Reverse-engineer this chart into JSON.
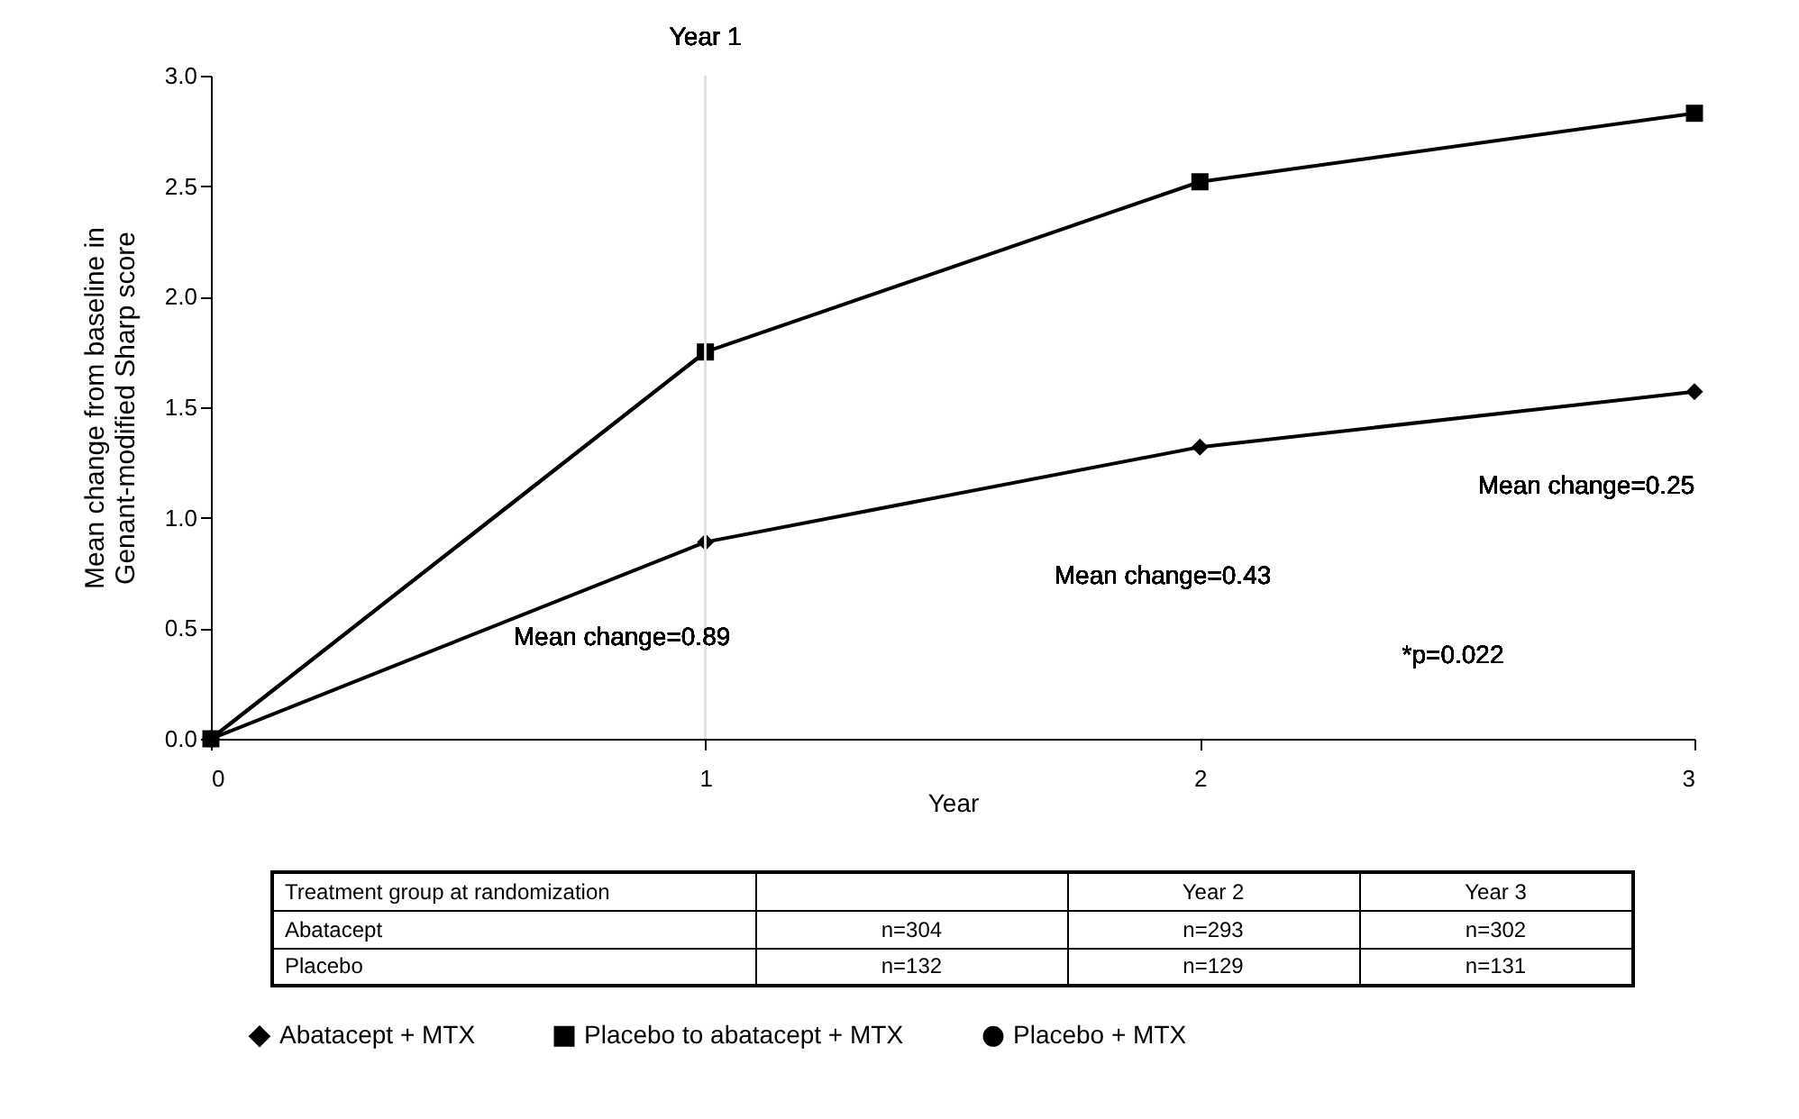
{
  "chart_data": {
    "type": "line",
    "xlabel": "Year",
    "ylabel": "Mean change from baseline in\nGenant-modified Sharp score",
    "x": [
      0,
      1,
      2,
      3
    ],
    "series": [
      {
        "name": "Abatacept + MTX",
        "color": "#000000",
        "marker": "diamond",
        "values": [
          0,
          0.89,
          1.32,
          1.57
        ]
      },
      {
        "name": "Placebo to abatacept + MTX",
        "color": "#000000",
        "marker": "square",
        "x": [
          0,
          1,
          2,
          3
        ],
        "values": [
          0,
          1.75,
          2.52,
          2.83
        ]
      },
      {
        "name": "Placebo + MTX",
        "color": "#000000",
        "marker": "circle",
        "x": [
          0,
          1
        ],
        "values": [
          0,
          1.75
        ]
      }
    ],
    "xlim": [
      0,
      3
    ],
    "xticks": [
      0,
      1,
      2,
      3
    ],
    "ylim": [
      0,
      3
    ],
    "yticks": [
      {
        "value": 0,
        "label": "0.0"
      },
      {
        "value": 0.5,
        "label": "0.5"
      },
      {
        "value": 1,
        "label": "1.0"
      },
      {
        "value": 1.5,
        "label": "1.5"
      },
      {
        "value": 2,
        "label": "2.0"
      },
      {
        "value": 2.5,
        "label": "2.5"
      },
      {
        "value": 3,
        "label": "3.0"
      }
    ],
    "ref_lines": [
      {
        "axis": "x",
        "value": 1,
        "label": "Year 1",
        "color": "#e0e0e0"
      }
    ],
    "annotations": [
      "Mean change=0.89",
      "Mean change=0.43",
      "Mean change=0.25",
      "*p=0.022",
      "Treatment group at randomization",
      "Year 2",
      "Year 3",
      "Abatacept",
      "n=304",
      "n=293",
      "n=302",
      "Placebo",
      "n=132",
      "n=129",
      "n=131"
    ],
    "grid": false,
    "legend": "bottom",
    "line_style": "solid"
  }
}
